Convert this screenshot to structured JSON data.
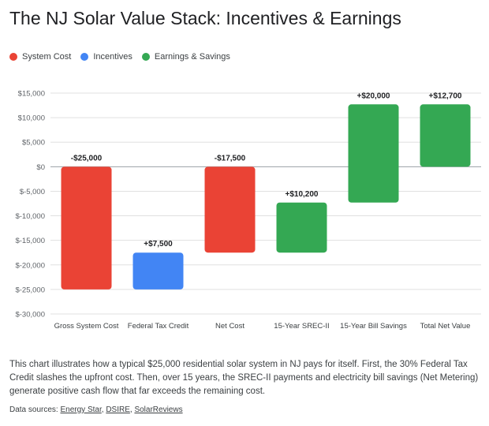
{
  "page": {
    "title": "The NJ Solar Value Stack: Incentives & Earnings",
    "description": "This chart illustrates how a typical $25,000 residential solar system in NJ pays for itself. First, the 30% Federal Tax Credit slashes the upfront cost. Then, over 15 years, the SREC-II payments and electricity bill savings (Net Metering) generate positive cash flow that far exceeds the remaining cost.",
    "sources_label": "Data sources:",
    "sources": [
      "Energy Star",
      "DSIRE",
      "SolarReviews"
    ],
    "sources_separator": ", "
  },
  "legend": [
    {
      "label": "System Cost",
      "color": "#ea4335"
    },
    {
      "label": "Incentives",
      "color": "#4285f4"
    },
    {
      "label": "Earnings & Savings",
      "color": "#34a853"
    }
  ],
  "chart_data": {
    "type": "bar",
    "subtype": "floating",
    "title": "The NJ Solar Value Stack: Incentives & Earnings",
    "xlabel": "",
    "ylabel": "",
    "ylim": [
      -30000,
      15000
    ],
    "yticks": [
      15000,
      10000,
      5000,
      0,
      -5000,
      -10000,
      -15000,
      -20000,
      -25000,
      -30000
    ],
    "ytick_labels": [
      "$15,000",
      "$10,000",
      "$5,000",
      "$0",
      "$-5,000",
      "$-10,000",
      "$-15,000",
      "$-20,000",
      "$-25,000",
      "$-30,000"
    ],
    "grid": true,
    "legend_position": "top-left",
    "bars": [
      {
        "category": "Gross System Cost",
        "start": 0,
        "end": -25000,
        "label": "-$25,000",
        "group": "System Cost",
        "color": "#ea4335"
      },
      {
        "category": "Federal Tax Credit",
        "start": -25000,
        "end": -17500,
        "label": "+$7,500",
        "group": "Incentives",
        "color": "#4285f4"
      },
      {
        "category": "Net Cost",
        "start": 0,
        "end": -17500,
        "label": "-$17,500",
        "group": "System Cost",
        "color": "#ea4335"
      },
      {
        "category": "15-Year SREC-II",
        "start": -17500,
        "end": -7300,
        "label": "+$10,200",
        "group": "Earnings & Savings",
        "color": "#34a853"
      },
      {
        "category": "15-Year Bill Savings",
        "start": -7300,
        "end": 12700,
        "label": "+$20,000",
        "group": "Earnings & Savings",
        "color": "#34a853"
      },
      {
        "category": "Total Net Value",
        "start": 0,
        "end": 12700,
        "label": "+$12,700",
        "group": "Earnings & Savings",
        "color": "#34a853"
      }
    ]
  }
}
